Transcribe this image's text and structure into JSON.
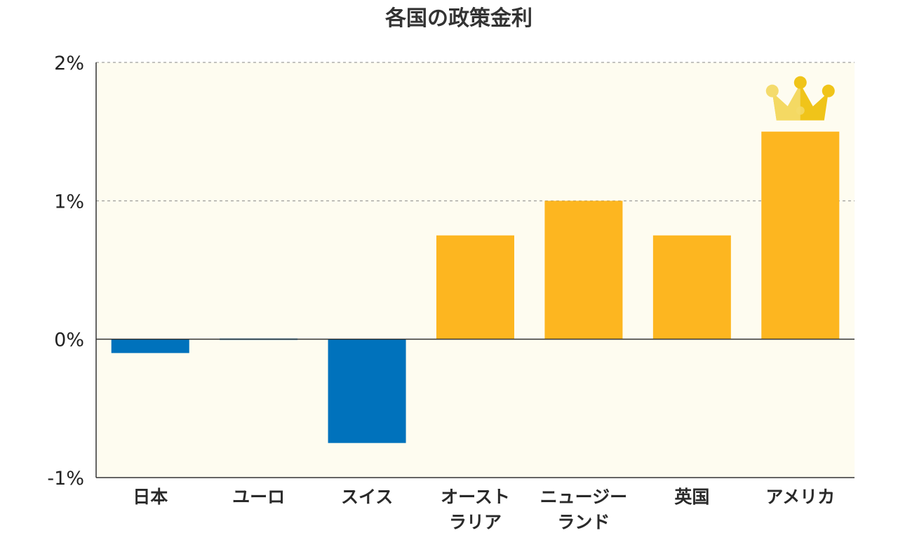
{
  "chart_data": {
    "type": "bar",
    "title": "各国の政策金利",
    "xlabel": "",
    "ylabel": "",
    "ylim": [
      -1,
      2
    ],
    "y_ticks": [
      {
        "value": 2,
        "label": "2%"
      },
      {
        "value": 1,
        "label": "1%"
      },
      {
        "value": 0,
        "label": "0%"
      },
      {
        "value": -1,
        "label": "-1%"
      }
    ],
    "grid": true,
    "categories": [
      [
        "日本"
      ],
      [
        "ユーロ"
      ],
      [
        "スイス"
      ],
      [
        "オースト",
        "ラリア"
      ],
      [
        "ニュージー",
        "ランド"
      ],
      [
        "英国"
      ],
      [
        "アメリカ"
      ]
    ],
    "values": [
      -0.1,
      0.0,
      -0.75,
      0.75,
      1.0,
      0.75,
      1.5
    ],
    "highlight_index": 6,
    "highlight_icon": "crown-icon"
  },
  "colors": {
    "positive_bar": "#FDB620",
    "negative_bar": "#0072BC",
    "plot_background": "#FEFCF0",
    "axis": "#333333",
    "grid": "#888888",
    "crown_light": "#F4DB6C",
    "crown_dark": "#F0C419"
  }
}
